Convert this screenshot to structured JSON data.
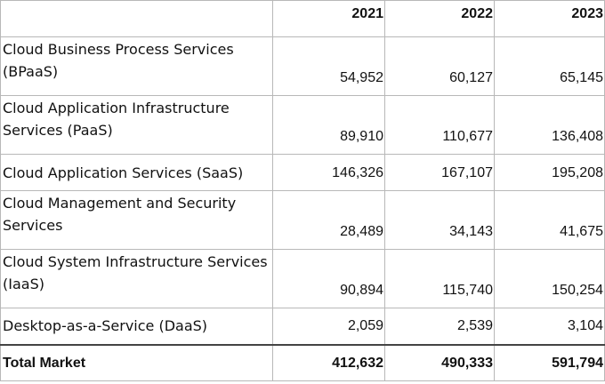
{
  "table": {
    "headers": [
      "",
      "2021",
      "2022",
      "2023"
    ],
    "rows": [
      {
        "label": "Cloud Business Process Services (BPaaS)",
        "values": [
          "54,952",
          "60,127",
          "65,145"
        ]
      },
      {
        "label": "Cloud Application Infrastructure Services (PaaS)",
        "values": [
          "89,910",
          "110,677",
          "136,408"
        ]
      },
      {
        "label": "Cloud Application Services (SaaS)",
        "values": [
          "146,326",
          "167,107",
          "195,208"
        ]
      },
      {
        "label": "Cloud Management and Security Services",
        "values": [
          "28,489",
          "34,143",
          "41,675"
        ]
      },
      {
        "label": "Cloud System Infrastructure Services (IaaS)",
        "values": [
          "90,894",
          "115,740",
          "150,254"
        ]
      },
      {
        "label": "Desktop-as-a-Service (DaaS)",
        "values": [
          "2,059",
          "2,539",
          "3,104"
        ]
      }
    ],
    "total": {
      "label": "Total Market",
      "values": [
        "412,632",
        "490,333",
        "591,794"
      ]
    }
  }
}
